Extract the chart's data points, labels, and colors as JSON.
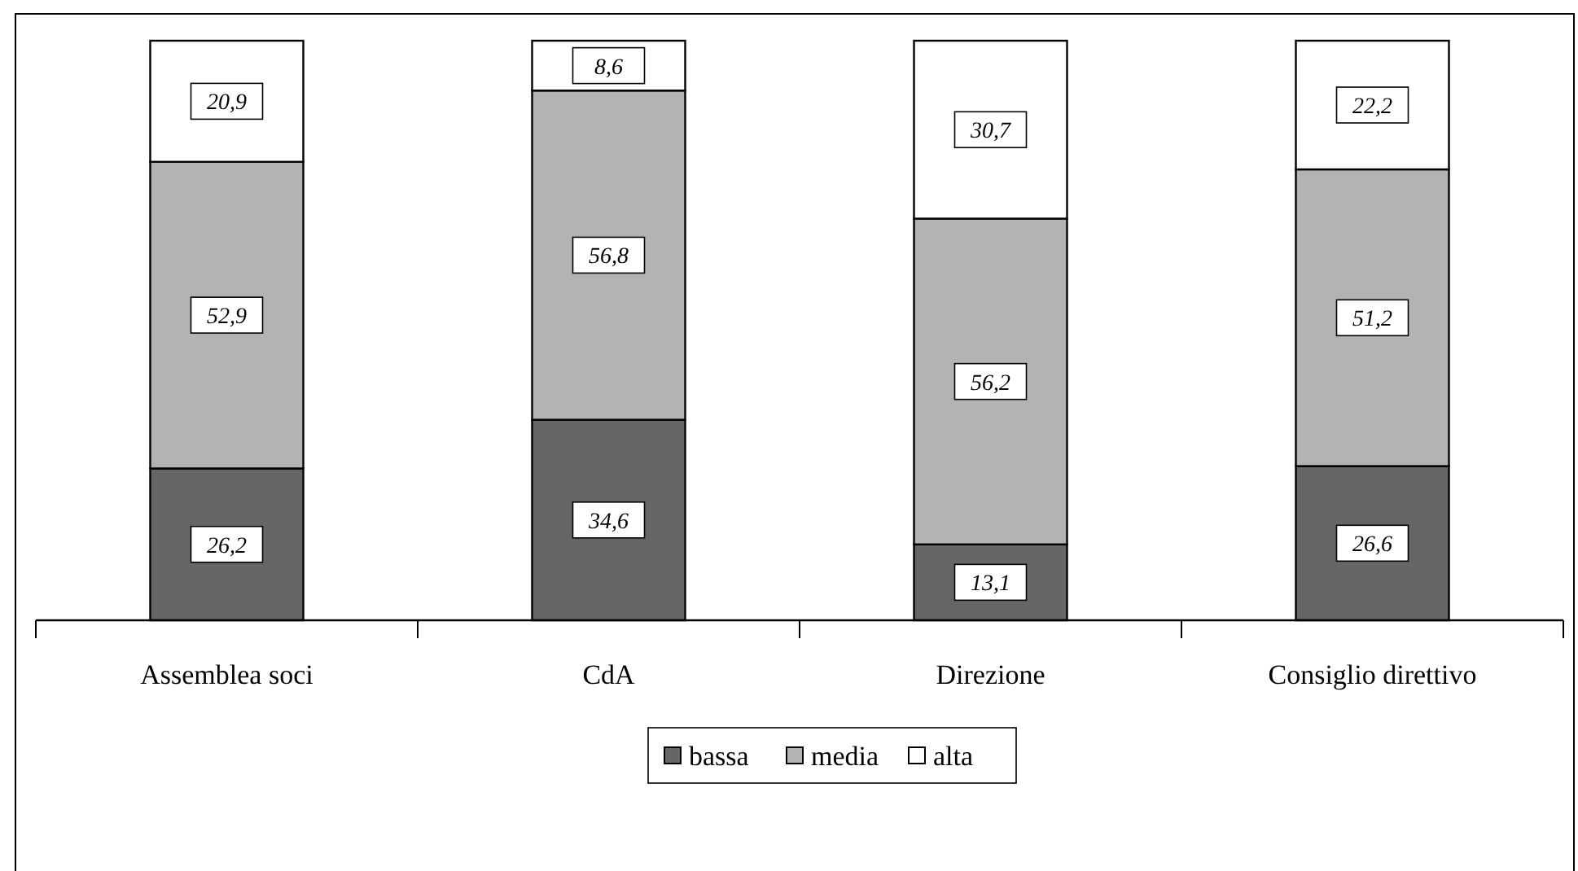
{
  "chart_data": {
    "type": "bar",
    "stacked": true,
    "categories": [
      "Assemblea soci",
      "CdA",
      "Direzione",
      "Consiglio direttivo"
    ],
    "series": [
      {
        "name": "bassa",
        "color": "#666666",
        "values": [
          26.2,
          34.6,
          13.1,
          26.6
        ],
        "value_labels": [
          "26,2",
          "34,6",
          "13,1",
          "26,6"
        ]
      },
      {
        "name": "media",
        "color": "#b3b3b3",
        "values": [
          52.9,
          56.8,
          56.2,
          51.2
        ],
        "value_labels": [
          "52,9",
          "56,8",
          "56,2",
          "51,2"
        ]
      },
      {
        "name": "alta",
        "color": "#ffffff",
        "values": [
          20.9,
          8.6,
          30.7,
          22.2
        ],
        "value_labels": [
          "20,9",
          "8,6",
          "30,7",
          "22,2"
        ]
      }
    ],
    "legend": "bottom"
  }
}
